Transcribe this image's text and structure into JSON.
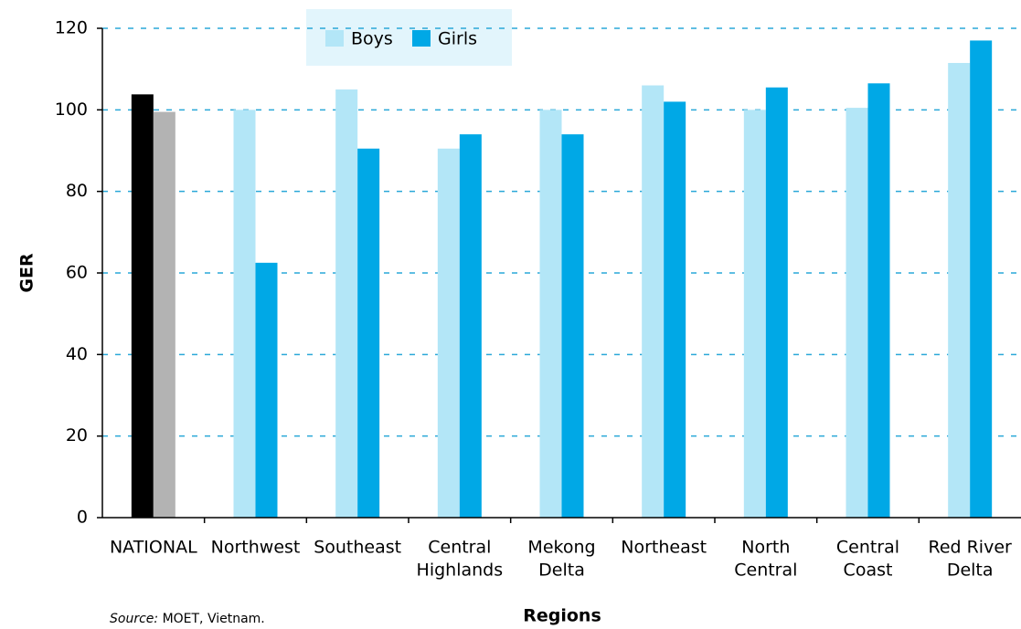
{
  "chart_data": {
    "type": "bar",
    "categories": [
      [
        "NATIONAL"
      ],
      [
        "Northwest"
      ],
      [
        "Southeast"
      ],
      [
        "Central",
        "Highlands"
      ],
      [
        "Mekong",
        "Delta"
      ],
      [
        "Northeast"
      ],
      [
        "North",
        "Central"
      ],
      [
        "Central",
        "Coast"
      ],
      [
        "Red River",
        "Delta"
      ]
    ],
    "series": [
      {
        "name": "Boys",
        "color": "#b3e6f7",
        "values": [
          103.8,
          100,
          105,
          90.5,
          100,
          106,
          100,
          100.5,
          111.5
        ],
        "colors": [
          "#000000",
          "#b3e6f7",
          "#b3e6f7",
          "#b3e6f7",
          "#b3e6f7",
          "#b3e6f7",
          "#b3e6f7",
          "#b3e6f7",
          "#b3e6f7"
        ]
      },
      {
        "name": "Girls",
        "color": "#00a8e6",
        "values": [
          99.5,
          62.5,
          90.5,
          94,
          94,
          102,
          105.5,
          106.5,
          117
        ],
        "colors": [
          "#b3b3b3",
          "#00a8e6",
          "#00a8e6",
          "#00a8e6",
          "#00a8e6",
          "#00a8e6",
          "#00a8e6",
          "#00a8e6",
          "#00a8e6"
        ]
      }
    ],
    "y_label": "GER",
    "x_label": "Regions",
    "source_label": "Source:",
    "source_text": "MOET, Vietnam.",
    "ylim": [
      0,
      120
    ],
    "yticks": [
      0,
      20,
      40,
      60,
      80,
      100,
      120
    ],
    "grid": true
  }
}
